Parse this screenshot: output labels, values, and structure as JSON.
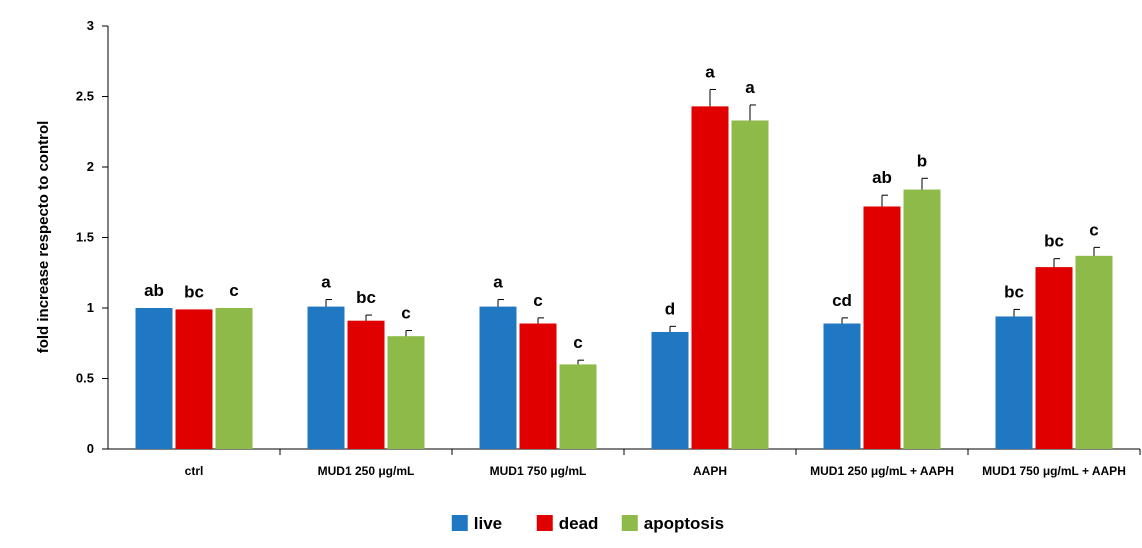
{
  "chart_data": {
    "type": "bar",
    "title": "",
    "xlabel": "",
    "ylabel": "fold increase respecto to control",
    "ylim": [
      0,
      3
    ],
    "yticks": [
      "0",
      "0.5",
      "1",
      "1.5",
      "2",
      "2.5",
      "3"
    ],
    "grid": false,
    "legend_position": "bottom",
    "categories": [
      "ctrl",
      "MUD1 250 μg/mL",
      "MUD1 750 μg/mL",
      "AAPH",
      "MUD1 250 μg/mL + AAPH",
      "MUD1 750 μg/mL + AAPH"
    ],
    "series": [
      {
        "name": "live",
        "color": "#1f78c1",
        "values": [
          1.0,
          1.01,
          1.01,
          0.83,
          0.89,
          0.94
        ],
        "errors": [
          0,
          0.05,
          0.05,
          0.04,
          0.04,
          0.05
        ],
        "letters": [
          "ab",
          "a",
          "a",
          "d",
          "cd",
          "bc"
        ]
      },
      {
        "name": "dead",
        "color": "#e00000",
        "values": [
          0.99,
          0.91,
          0.89,
          2.43,
          1.72,
          1.29
        ],
        "errors": [
          0,
          0.04,
          0.04,
          0.12,
          0.08,
          0.06
        ],
        "letters": [
          "bc",
          "bc",
          "c",
          "a",
          "ab",
          "bc"
        ]
      },
      {
        "name": "apoptosis",
        "color": "#8dba48",
        "values": [
          1.0,
          0.8,
          0.6,
          2.33,
          1.84,
          1.37
        ],
        "errors": [
          0,
          0.04,
          0.03,
          0.11,
          0.08,
          0.06
        ],
        "letters": [
          "c",
          "c",
          "c",
          "a",
          "b",
          "c"
        ]
      }
    ]
  }
}
